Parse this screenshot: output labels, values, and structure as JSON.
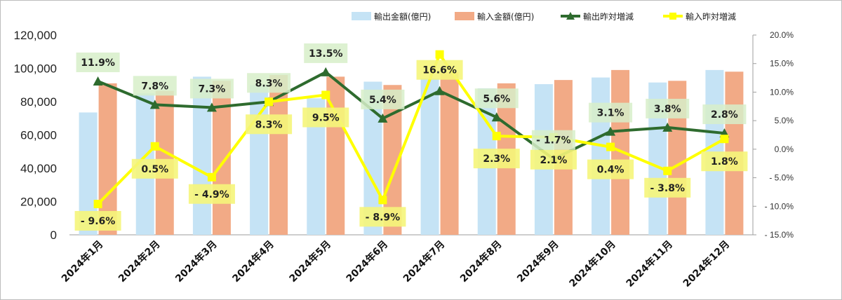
{
  "chart_data": {
    "type": "bar",
    "categories": [
      "2024年1月",
      "2024年2月",
      "2024年3月",
      "2024年4月",
      "2024年5月",
      "2024年6月",
      "2024年7月",
      "2024年8月",
      "2024年9月",
      "2024年10月",
      "2024年11月",
      "2024年12月"
    ],
    "series": [
      {
        "name": "輸出金額(億円)",
        "type": "bar",
        "axis": "left",
        "color": "#c5e3f5",
        "values": [
          73500,
          85000,
          95000,
          90000,
          82000,
          92000,
          94000,
          88000,
          90500,
          94500,
          91500,
          99000
        ]
      },
      {
        "name": "輸入金額(億円)",
        "type": "bar",
        "axis": "left",
        "color": "#f2aa86",
        "values": [
          91000,
          86500,
          92500,
          96000,
          95000,
          90000,
          97500,
          91000,
          93000,
          99000,
          92500,
          98000
        ]
      },
      {
        "name": "輸出昨対増減",
        "type": "line",
        "axis": "right",
        "color": "#2e6b2e",
        "marker": "triangle",
        "values": [
          11.9,
          7.8,
          7.3,
          8.3,
          13.5,
          5.4,
          10.2,
          5.6,
          -1.7,
          3.1,
          3.8,
          2.8
        ]
      },
      {
        "name": "輸入昨対増減",
        "type": "line",
        "axis": "right",
        "color": "#ffff00",
        "marker": "square",
        "values": [
          -9.6,
          0.5,
          -4.9,
          8.3,
          9.5,
          -8.9,
          16.6,
          2.3,
          2.1,
          0.4,
          -3.8,
          1.8
        ]
      }
    ],
    "data_labels": {
      "export": [
        "11.9%",
        "7.8%",
        "7.3%",
        "8.3%",
        "13.5%",
        "5.4%",
        "",
        "5.6%",
        "- 1.7%",
        "3.1%",
        "3.8%",
        "2.8%"
      ],
      "import": [
        "- 9.6%",
        "0.5%",
        "- 4.9%",
        "8.3%",
        "9.5%",
        "- 8.9%",
        "16.6%",
        "2.3%",
        "2.1%",
        "0.4%",
        "- 3.8%",
        "1.8%"
      ]
    },
    "ylim": [
      0,
      120000
    ],
    "y2lim": [
      -15,
      20
    ],
    "yticks": [
      "0",
      "20,000",
      "40,000",
      "60,000",
      "80,000",
      "100,000",
      "120,000"
    ],
    "y2ticks": [
      "- 15.0%",
      "- 10.0%",
      "- 5.0%",
      "0.0%",
      "5.0%",
      "10.0%",
      "15.0%",
      "20.0%"
    ],
    "legend": {
      "position": "top-right",
      "entries": [
        "輸出金額(億円)",
        "輸入金額(億円)",
        "輸出昨対増減",
        "輸入昨対増減"
      ]
    },
    "grid": false
  }
}
